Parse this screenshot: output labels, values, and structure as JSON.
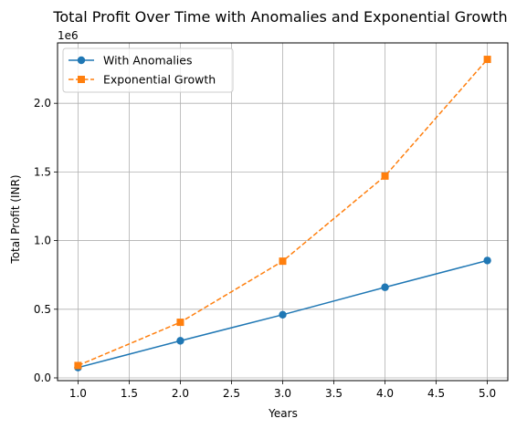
{
  "chart_data": {
    "type": "line",
    "title": "Total Profit Over Time with Anomalies and Exponential Growth",
    "xlabel": "Years",
    "ylabel": "Total Profit (INR)",
    "y_offset_label": "1e6",
    "x": [
      1,
      2,
      3,
      4,
      5
    ],
    "xlim": [
      0.8,
      5.2
    ],
    "ylim": [
      -0.02,
      2.44
    ],
    "xticks": [
      1.0,
      1.5,
      2.0,
      2.5,
      3.0,
      3.5,
      4.0,
      4.5,
      5.0
    ],
    "xtick_labels": [
      "1.0",
      "1.5",
      "2.0",
      "2.5",
      "3.0",
      "3.5",
      "4.0",
      "4.5",
      "5.0"
    ],
    "yticks": [
      0.0,
      0.5,
      1.0,
      1.5,
      2.0
    ],
    "ytick_labels": [
      "0.0",
      "0.5",
      "1.0",
      "1.5",
      "2.0"
    ],
    "grid": true,
    "legend_position": "top-left",
    "series": [
      {
        "name": "With Anomalies",
        "values": [
          0.075,
          0.27,
          0.46,
          0.66,
          0.855
        ],
        "color": "#1f77b4",
        "marker": "circle",
        "dash": "solid"
      },
      {
        "name": "Exponential Growth",
        "values": [
          0.09,
          0.405,
          0.85,
          1.47,
          2.32
        ],
        "color": "#ff7f0e",
        "marker": "square",
        "dash": "dashed"
      }
    ]
  }
}
